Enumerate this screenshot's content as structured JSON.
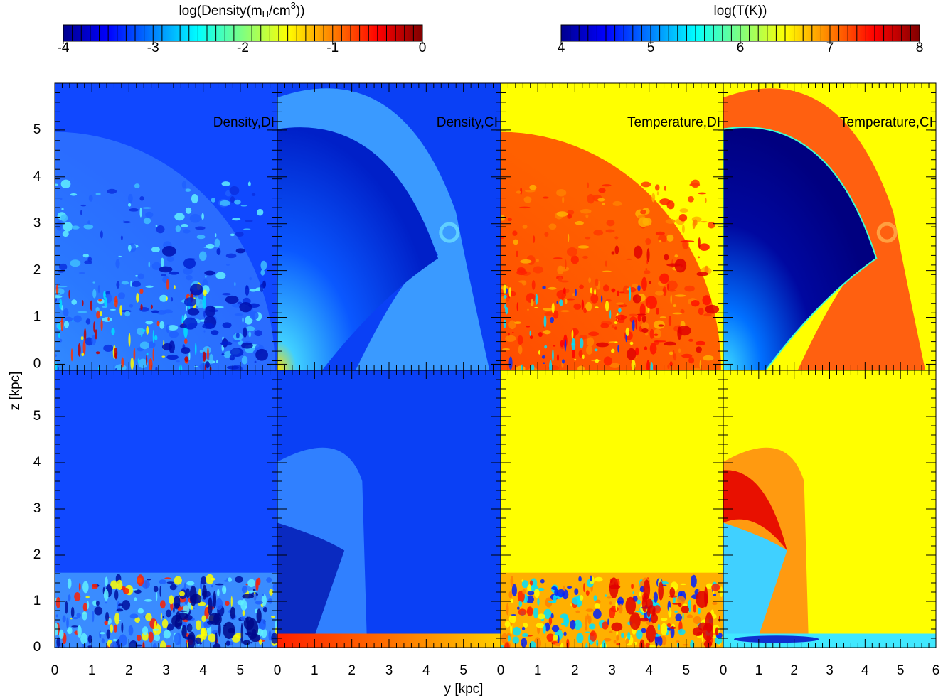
{
  "chart_data": {
    "type": "heatmap-grid",
    "colorbars": [
      {
        "title_parts": [
          "log(Density(m",
          "H",
          "/cm",
          "3",
          "))"
        ],
        "lim": [
          -4,
          0
        ],
        "ticks": [
          -4,
          -3,
          -2,
          -1,
          0
        ]
      },
      {
        "title_parts": [
          "log(T(K))"
        ],
        "lim": [
          4,
          8
        ],
        "ticks": [
          4,
          5,
          6,
          7,
          8
        ]
      }
    ],
    "panel_labels": [
      "Density,DI",
      "Density,CI",
      "Temperature,DI",
      "Temperature,CI"
    ],
    "xlabel": "y [kpc]",
    "ylabel": "z [kpc]",
    "xlim": [
      0,
      6
    ],
    "xticks": [
      0,
      1,
      2,
      3,
      4,
      5,
      6
    ],
    "rows": [
      {
        "ylim": [
          -0.13,
          6
        ]
      },
      {
        "ylim": [
          0,
          6
        ]
      }
    ],
    "yticks": [
      0,
      1,
      2,
      3,
      4,
      5
    ]
  }
}
